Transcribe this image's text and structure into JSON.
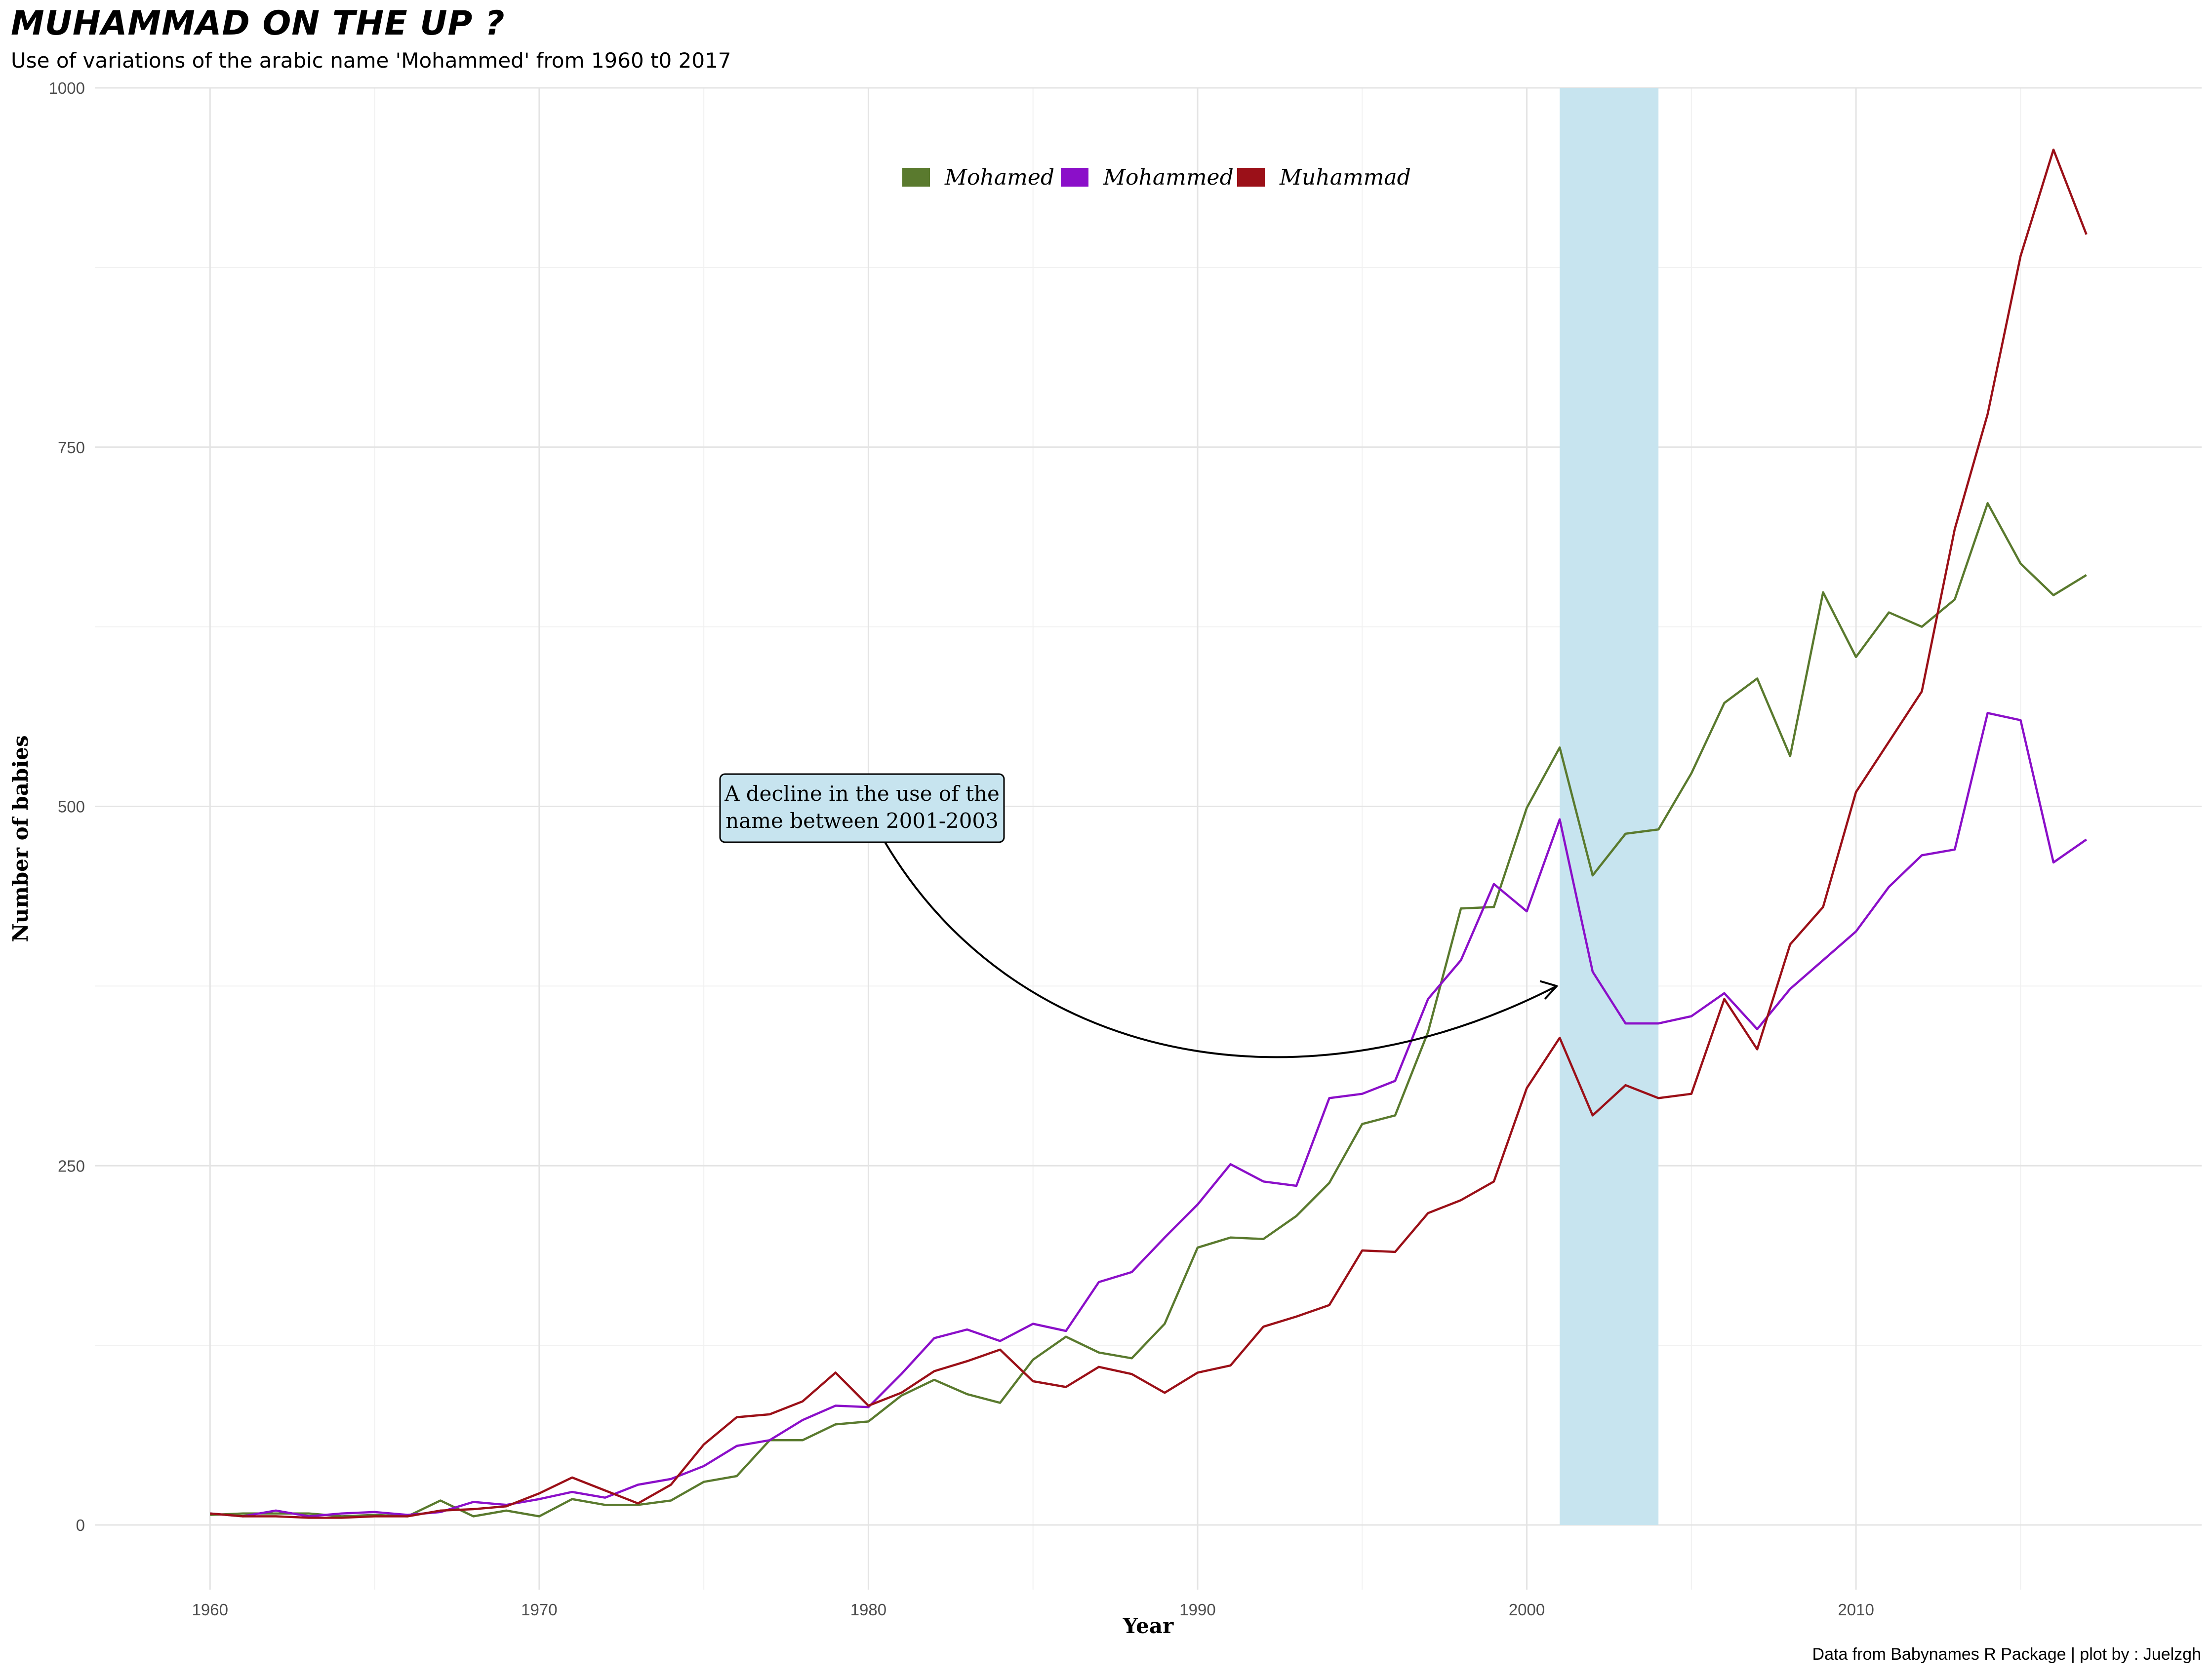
{
  "title": "MUHAMMAD ON THE UP ?",
  "subtitle": "Use of variations of the arabic name 'Mohammed' from 1960 t0 2017",
  "caption": "Data from Babynames R Package | plot by : Juelzgh",
  "colors": {
    "Mohamed": "#5a7a2e",
    "Mohammed": "#8b0fc9",
    "Muhammad": "#9b1018",
    "highlight": "#c7e4ef",
    "grid": "#e4e4e4"
  },
  "chart_data": {
    "type": "line",
    "title": "MUHAMMAD ON THE UP ?",
    "xlabel": "Year",
    "ylabel": "Number of babies",
    "xlim": [
      1956.5,
      2020.5
    ],
    "ylim": [
      -45,
      1000
    ],
    "x_ticks": [
      1960,
      1970,
      1980,
      1990,
      2000,
      2010
    ],
    "y_ticks": [
      0,
      250,
      500,
      750,
      1000
    ],
    "legend_position": "top-center",
    "grid": true,
    "highlight_band": {
      "x_start": 2001,
      "x_end": 2004
    },
    "annotation": {
      "lines": [
        "A decline in the use of the",
        "name between 2001-2003"
      ],
      "arrow_to": {
        "x": 2001,
        "y": 375
      }
    },
    "x": [
      1960,
      1961,
      1962,
      1963,
      1964,
      1965,
      1966,
      1967,
      1968,
      1969,
      1970,
      1971,
      1972,
      1973,
      1974,
      1975,
      1976,
      1977,
      1978,
      1979,
      1980,
      1981,
      1982,
      1983,
      1984,
      1985,
      1986,
      1987,
      1988,
      1989,
      1990,
      1991,
      1992,
      1993,
      1994,
      1995,
      1996,
      1997,
      1998,
      1999,
      2000,
      2001,
      2002,
      2003,
      2004,
      2005,
      2006,
      2007,
      2008,
      2009,
      2010,
      2011,
      2012,
      2013,
      2014,
      2015,
      2016,
      2017
    ],
    "series": [
      {
        "name": "Mohamed",
        "values": [
          7,
          8,
          8,
          8,
          6,
          7,
          6,
          17,
          6,
          10,
          6,
          18,
          14,
          14,
          17,
          30,
          34,
          59,
          59,
          70,
          72,
          90,
          101,
          91,
          85,
          115,
          131,
          120,
          116,
          140,
          193,
          200,
          199,
          215,
          238,
          279,
          285,
          343,
          429,
          430,
          499,
          541,
          452,
          481,
          484,
          523,
          572,
          589,
          535,
          649,
          604,
          635,
          625,
          644,
          711,
          669,
          647,
          661
        ]
      },
      {
        "name": "Mohammed",
        "values": [
          8,
          6,
          10,
          6,
          8,
          9,
          7,
          9,
          16,
          14,
          18,
          23,
          19,
          28,
          32,
          41,
          55,
          59,
          73,
          83,
          82,
          105,
          130,
          136,
          128,
          140,
          135,
          169,
          176,
          200,
          223,
          251,
          239,
          236,
          297,
          300,
          309,
          366,
          393,
          446,
          427,
          491,
          385,
          349,
          349,
          354,
          370,
          345,
          373,
          393,
          413,
          444,
          466,
          470,
          565,
          560,
          461,
          477
        ]
      },
      {
        "name": "Muhammad",
        "values": [
          8,
          6,
          6,
          5,
          5,
          6,
          6,
          10,
          11,
          13,
          22,
          33,
          24,
          15,
          28,
          56,
          75,
          77,
          86,
          106,
          83,
          92,
          107,
          114,
          122,
          100,
          96,
          110,
          105,
          92,
          106,
          111,
          138,
          145,
          153,
          191,
          190,
          217,
          226,
          239,
          304,
          339,
          285,
          306,
          297,
          300,
          366,
          331,
          404,
          430,
          510,
          545,
          580,
          693,
          773,
          883,
          957,
          898
        ]
      }
    ]
  }
}
